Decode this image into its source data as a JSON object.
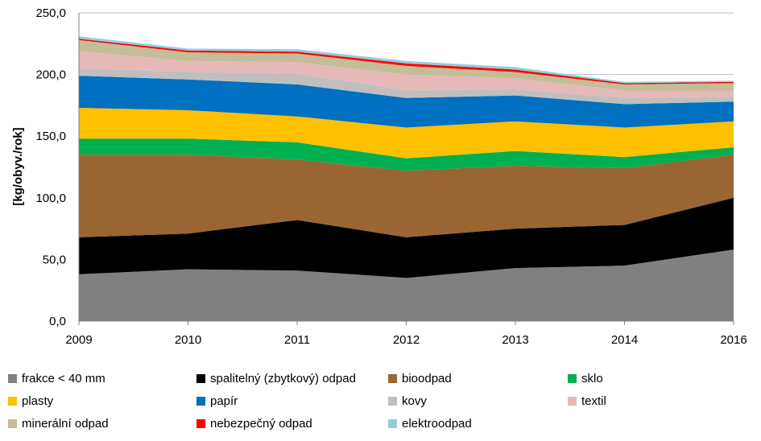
{
  "chart_data": {
    "type": "area",
    "stacked": true,
    "title": "",
    "xlabel": "",
    "ylabel": "[kg/obyv./rok]",
    "ylim": [
      0,
      250
    ],
    "yticks": [
      "0,0",
      "50,0",
      "100,0",
      "150,0",
      "200,0",
      "250,0"
    ],
    "ytick_values": [
      0,
      50,
      100,
      150,
      200,
      250
    ],
    "categories": [
      "2009",
      "2010",
      "2011",
      "2012",
      "2013",
      "2014",
      "2016"
    ],
    "grid": "horizontal",
    "legend_position": "bottom",
    "series": [
      {
        "name": "frakce < 40 mm",
        "color": "#808080",
        "values": [
          38,
          42,
          41,
          35,
          43,
          45,
          58
        ]
      },
      {
        "name": "spalitelný (zbytkový) odpad",
        "color": "#000000",
        "values": [
          30,
          29,
          41,
          33,
          32,
          33,
          42
        ]
      },
      {
        "name": "bioodpad",
        "color": "#996633",
        "values": [
          67,
          64,
          49,
          54,
          51,
          46,
          35
        ]
      },
      {
        "name": "sklo",
        "color": "#00B050",
        "values": [
          13,
          13,
          14,
          10,
          12,
          9,
          6
        ]
      },
      {
        "name": "plasty",
        "color": "#FFC000",
        "values": [
          25,
          23,
          21,
          25,
          24,
          24,
          21
        ]
      },
      {
        "name": "papír",
        "color": "#0070C0",
        "values": [
          26,
          25,
          26,
          24,
          21,
          19,
          16
        ]
      },
      {
        "name": "kovy",
        "color": "#BFBFBF",
        "values": [
          6,
          6,
          9,
          6,
          5,
          5,
          4
        ]
      },
      {
        "name": "textil",
        "color": "#E6B9B8",
        "values": [
          14,
          9,
          9,
          13,
          9,
          6,
          5
        ]
      },
      {
        "name": "minerální odpad",
        "color": "#C4BD97",
        "values": [
          9,
          7,
          7,
          7,
          5,
          5,
          6
        ]
      },
      {
        "name": "nebezpečný odpad",
        "color": "#FF0000",
        "values": [
          1,
          1.5,
          1.5,
          2,
          2,
          1,
          1
        ]
      },
      {
        "name": "elektroodpad",
        "color": "#93CDDD",
        "values": [
          2,
          1.5,
          2,
          2,
          2,
          1,
          1
        ]
      }
    ]
  }
}
